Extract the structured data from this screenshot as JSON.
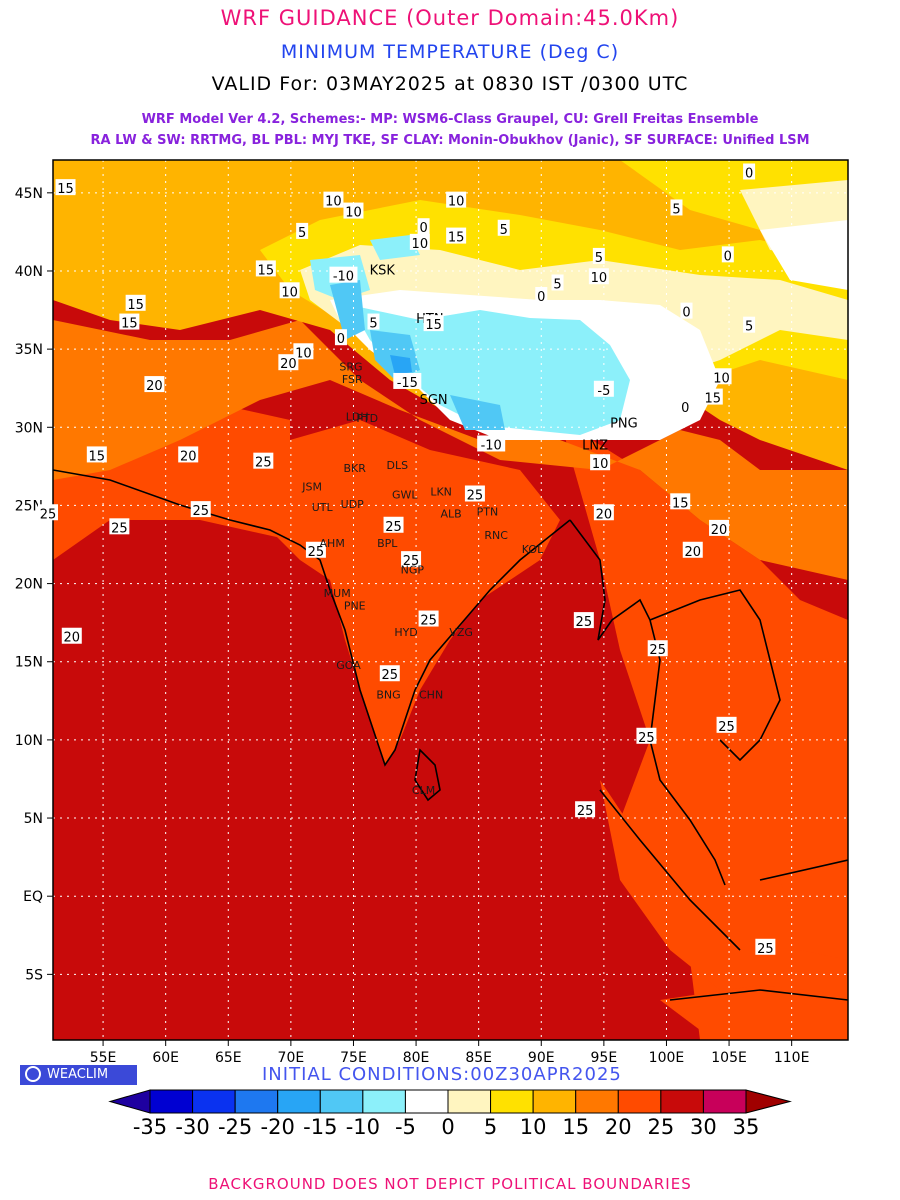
{
  "header": {
    "title": "WRF GUIDANCE (Outer Domain:45.0Km)",
    "variable": "MINIMUM TEMPERATURE (Deg C)",
    "valid": "VALID For: 03MAY2025 at 0830 IST /0300 UTC",
    "model_line1": "WRF Model Ver 4.2, Schemes:- MP: WSM6-Class Graupel, CU: Grell Freitas Ensemble",
    "model_line2": "RA LW & SW: RRTMG, BL PBL: MYJ TKE, SF CLAY: Monin-Obukhov (Janic), SF SURFACE: Unified LSM"
  },
  "colors": {
    "title": "#ee1177",
    "variable": "#2244ee",
    "model_text": "#8822dd",
    "init_text": "#4455ee",
    "note_text": "#ee1177",
    "ocean": "#c80a0a"
  },
  "map": {
    "lon_labels": [
      "55E",
      "60E",
      "65E",
      "70E",
      "75E",
      "80E",
      "85E",
      "90E",
      "95E",
      "100E",
      "105E",
      "110E"
    ],
    "lat_labels": [
      "45N",
      "40N",
      "35N",
      "30N",
      "25N",
      "20N",
      "15N",
      "10N",
      "5N",
      "EQ",
      "5S"
    ],
    "contour_labels": [
      {
        "t": "15",
        "lon": 52,
        "lat": 45.3
      },
      {
        "t": "10",
        "lon": 73.4,
        "lat": 44.5
      },
      {
        "t": "10",
        "lon": 75,
        "lat": 43.8
      },
      {
        "t": "10",
        "lon": 83.2,
        "lat": 44.5
      },
      {
        "t": "5",
        "lon": 70.9,
        "lat": 42.5
      },
      {
        "t": "10",
        "lon": 80.3,
        "lat": 41.8
      },
      {
        "t": "15",
        "lon": 83.2,
        "lat": 42.2
      },
      {
        "t": "0",
        "lon": 80.6,
        "lat": 42.8
      },
      {
        "t": "5",
        "lon": 87,
        "lat": 42.7
      },
      {
        "t": "15",
        "lon": 68,
        "lat": 40.1
      },
      {
        "t": "10",
        "lon": 69.9,
        "lat": 38.7
      },
      {
        "t": "-10",
        "lon": 74.2,
        "lat": 39.7
      },
      {
        "t": "KSK",
        "lon": 77.3,
        "lat": 40.1
      },
      {
        "t": "5",
        "lon": 94.6,
        "lat": 40.9
      },
      {
        "t": "0",
        "lon": 90,
        "lat": 38.4
      },
      {
        "t": "5",
        "lon": 91.3,
        "lat": 39.2
      },
      {
        "t": "10",
        "lon": 94.6,
        "lat": 39.6
      },
      {
        "t": "5",
        "lon": 100.8,
        "lat": 44
      },
      {
        "t": "0",
        "lon": 104.9,
        "lat": 41
      },
      {
        "t": "0",
        "lon": 106.6,
        "lat": 46.3
      },
      {
        "t": "0",
        "lon": 101.6,
        "lat": 37.4
      },
      {
        "t": "5",
        "lon": 106.6,
        "lat": 36.5
      },
      {
        "t": "15",
        "lon": 57.6,
        "lat": 37.9
      },
      {
        "t": "15",
        "lon": 57.1,
        "lat": 36.7
      },
      {
        "t": "10",
        "lon": 71,
        "lat": 34.8
      },
      {
        "t": "5",
        "lon": 76.6,
        "lat": 36.7
      },
      {
        "t": "20",
        "lon": 69.8,
        "lat": 34.1
      },
      {
        "t": "0",
        "lon": 74,
        "lat": 35.7
      },
      {
        "t": "-15",
        "lon": 79.3,
        "lat": 32.9
      },
      {
        "t": "SGN",
        "lon": 81.4,
        "lat": 31.8
      },
      {
        "t": "HTN",
        "lon": 81.1,
        "lat": 37
      },
      {
        "t": "15",
        "lon": 81.4,
        "lat": 36.6
      },
      {
        "t": "-5",
        "lon": 95,
        "lat": 32.4
      },
      {
        "t": "10",
        "lon": 104.4,
        "lat": 33.2
      },
      {
        "t": "15",
        "lon": 103.7,
        "lat": 31.9
      },
      {
        "t": "0",
        "lon": 101.5,
        "lat": 31.3
      },
      {
        "t": "PNG",
        "lon": 96.6,
        "lat": 30.3
      },
      {
        "t": "20",
        "lon": 59.1,
        "lat": 32.7
      },
      {
        "t": "-10",
        "lon": 86,
        "lat": 28.9
      },
      {
        "t": "LNZ",
        "lon": 94.3,
        "lat": 28.9
      },
      {
        "t": "15",
        "lon": 54.5,
        "lat": 28.2
      },
      {
        "t": "20",
        "lon": 61.8,
        "lat": 28.2
      },
      {
        "t": "25",
        "lon": 67.8,
        "lat": 27.8
      },
      {
        "t": "10",
        "lon": 94.7,
        "lat": 27.7
      },
      {
        "t": "25",
        "lon": 84.7,
        "lat": 25.7
      },
      {
        "t": "25",
        "lon": 50.6,
        "lat": 24.5
      },
      {
        "t": "25",
        "lon": 56.3,
        "lat": 23.6
      },
      {
        "t": "25",
        "lon": 62.8,
        "lat": 24.7
      },
      {
        "t": "20",
        "lon": 95,
        "lat": 24.5
      },
      {
        "t": "15",
        "lon": 101.1,
        "lat": 25.2
      },
      {
        "t": "20",
        "lon": 104.2,
        "lat": 23.5
      },
      {
        "t": "20",
        "lon": 102.1,
        "lat": 22.1
      },
      {
        "t": "25",
        "lon": 72,
        "lat": 22.1
      },
      {
        "t": "25",
        "lon": 78.2,
        "lat": 23.7
      },
      {
        "t": "25",
        "lon": 79.6,
        "lat": 21.5
      },
      {
        "t": "20",
        "lon": 52.5,
        "lat": 16.6
      },
      {
        "t": "25",
        "lon": 93.4,
        "lat": 17.6
      },
      {
        "t": "25",
        "lon": 81,
        "lat": 17.7
      },
      {
        "t": "25",
        "lon": 77.9,
        "lat": 14.2
      },
      {
        "t": "25",
        "lon": 99.3,
        "lat": 15.8
      },
      {
        "t": "25",
        "lon": 104.8,
        "lat": 10.9
      },
      {
        "t": "25",
        "lon": 98.4,
        "lat": 10.2
      },
      {
        "t": "25",
        "lon": 93.5,
        "lat": 5.5
      },
      {
        "t": "25",
        "lon": 107.9,
        "lat": -3.3
      }
    ],
    "station_labels": [
      {
        "t": "SRG",
        "lon": 74.8,
        "lat": 33.9
      },
      {
        "t": "FSR",
        "lon": 74.9,
        "lat": 33.1
      },
      {
        "t": "LDH",
        "lon": 75.3,
        "lat": 30.7
      },
      {
        "t": "PTD",
        "lon": 76.1,
        "lat": 30.6
      },
      {
        "t": "DLS",
        "lon": 78.5,
        "lat": 27.6
      },
      {
        "t": "BKR",
        "lon": 75.1,
        "lat": 27.4
      },
      {
        "t": "JSM",
        "lon": 71.7,
        "lat": 26.2
      },
      {
        "t": "UTL",
        "lon": 72.5,
        "lat": 24.9
      },
      {
        "t": "UDP",
        "lon": 74.9,
        "lat": 25.1
      },
      {
        "t": "LKN",
        "lon": 82,
        "lat": 25.9
      },
      {
        "t": "GWL",
        "lon": 79.1,
        "lat": 25.7
      },
      {
        "t": "ALB",
        "lon": 82.8,
        "lat": 24.5
      },
      {
        "t": "PTN",
        "lon": 85.7,
        "lat": 24.6
      },
      {
        "t": "AHM",
        "lon": 73.3,
        "lat": 22.6
      },
      {
        "t": "BPL",
        "lon": 77.7,
        "lat": 22.6
      },
      {
        "t": "RNC",
        "lon": 86.4,
        "lat": 23.1
      },
      {
        "t": "KOL",
        "lon": 89.3,
        "lat": 22.2
      },
      {
        "t": "NGP",
        "lon": 79.7,
        "lat": 20.9
      },
      {
        "t": "MUM",
        "lon": 73.7,
        "lat": 19.4
      },
      {
        "t": "PNE",
        "lon": 75.1,
        "lat": 18.6
      },
      {
        "t": "HYD",
        "lon": 79.2,
        "lat": 16.9
      },
      {
        "t": "VZG",
        "lon": 83.6,
        "lat": 16.9
      },
      {
        "t": "GOA",
        "lon": 74.6,
        "lat": 14.8
      },
      {
        "t": "BNG",
        "lon": 77.8,
        "lat": 12.9
      },
      {
        "t": "CHN",
        "lon": 81.2,
        "lat": 12.9
      },
      {
        "t": "CLM",
        "lon": 80.6,
        "lat": 6.8
      }
    ]
  },
  "footer": {
    "brand": "WEACLIM",
    "init": "INITIAL CONDITIONS:00Z30APR2025",
    "note": "BACKGROUND DOES NOT DEPICT POLITICAL BOUNDARIES"
  },
  "legend": {
    "ticks": [
      "-35",
      "-30",
      "-25",
      "-20",
      "-15",
      "-10",
      "-5",
      "0",
      "5",
      "10",
      "15",
      "20",
      "25",
      "30",
      "35"
    ],
    "colors": [
      "#1e00a0",
      "#0000d2",
      "#0a32f0",
      "#1e78f0",
      "#28a5f5",
      "#50c8f5",
      "#8cf0fa",
      "#ffffff",
      "#fff5c0",
      "#ffe100",
      "#ffb400",
      "#ff7800",
      "#ff4b00",
      "#c80a0a",
      "#c8005a",
      "#a00000"
    ]
  }
}
